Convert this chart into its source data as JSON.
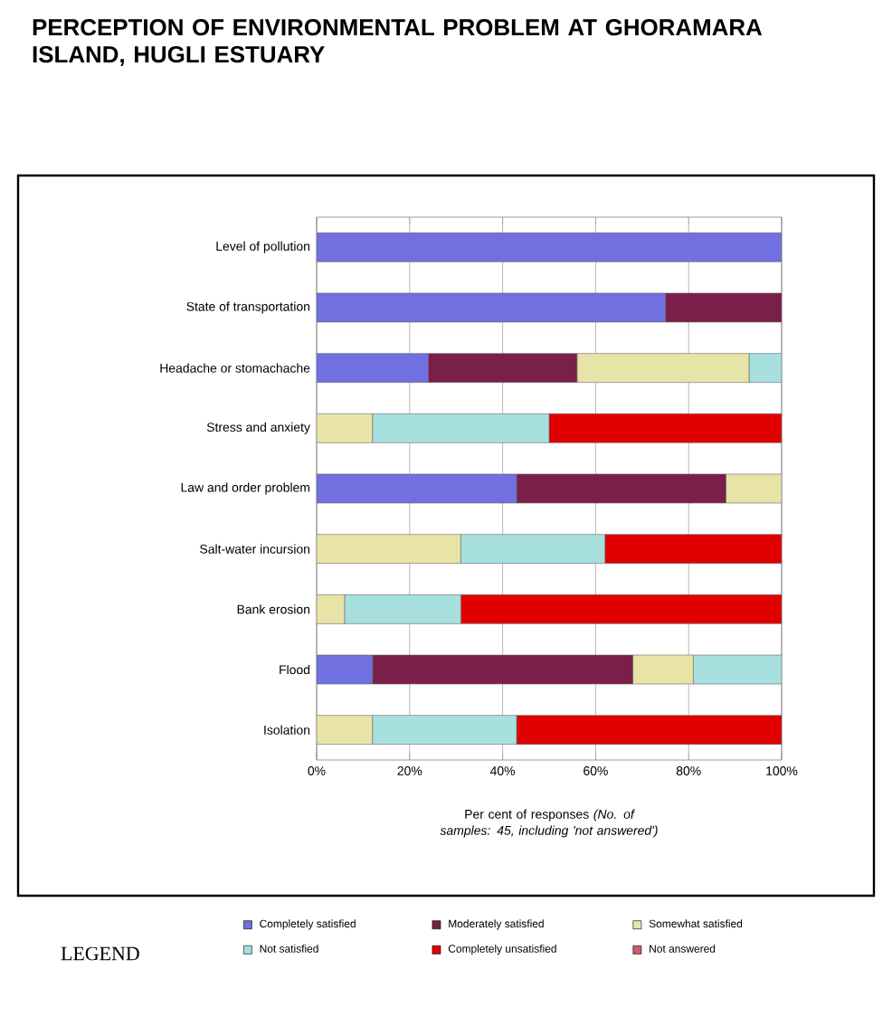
{
  "chart_data": {
    "type": "bar",
    "orientation": "horizontal",
    "stacked": true,
    "title": "PERCEPTION OF ENVIRONMENTAL PROBLEM AT GHORAMARA ISLAND, HUGLI ESTUARY",
    "xlabel": "Per cent of responses *(No. of samples: 45, including 'not answered')*",
    "legend_title": "LEGEND",
    "categories": [
      "Level of pollution",
      "State of transportation",
      "Headache or stomachache",
      "Stress and anxiety",
      "Law and order problem",
      "Salt-water incursion",
      "Bank erosion",
      "Flood",
      "Isolation"
    ],
    "series": [
      {
        "name": "Completely satisfied",
        "color": "#7070e0",
        "values": [
          100,
          75,
          24,
          0,
          43,
          0,
          0,
          12,
          0
        ]
      },
      {
        "name": "Moderately satisfied",
        "color": "#7a1f4a",
        "values": [
          0,
          25,
          32,
          0,
          45,
          0,
          0,
          56,
          0
        ]
      },
      {
        "name": "Somewhat satisfied",
        "color": "#e8e4a8",
        "values": [
          0,
          0,
          37,
          12,
          12,
          31,
          6,
          13,
          12
        ]
      },
      {
        "name": "Not satisfied",
        "color": "#a8e0e0",
        "values": [
          0,
          0,
          7,
          38,
          0,
          31,
          25,
          19,
          31
        ]
      },
      {
        "name": "Completely unsatisfied",
        "color": "#e00000",
        "values": [
          0,
          0,
          0,
          50,
          0,
          38,
          69,
          0,
          57
        ]
      },
      {
        "name": "Not answered",
        "color": "#c06070",
        "values": [
          0,
          0,
          0,
          0,
          0,
          0,
          0,
          0,
          0
        ]
      }
    ],
    "xlim": [
      0,
      100
    ],
    "xticks": [
      {
        "value": 0,
        "label": "0%"
      },
      {
        "value": 20,
        "label": "20%"
      },
      {
        "value": 40,
        "label": "40%"
      },
      {
        "value": 60,
        "label": "60%"
      },
      {
        "value": 80,
        "label": "80%"
      },
      {
        "value": 100,
        "label": "100%"
      }
    ],
    "grid": "x",
    "legend": "bottom"
  }
}
